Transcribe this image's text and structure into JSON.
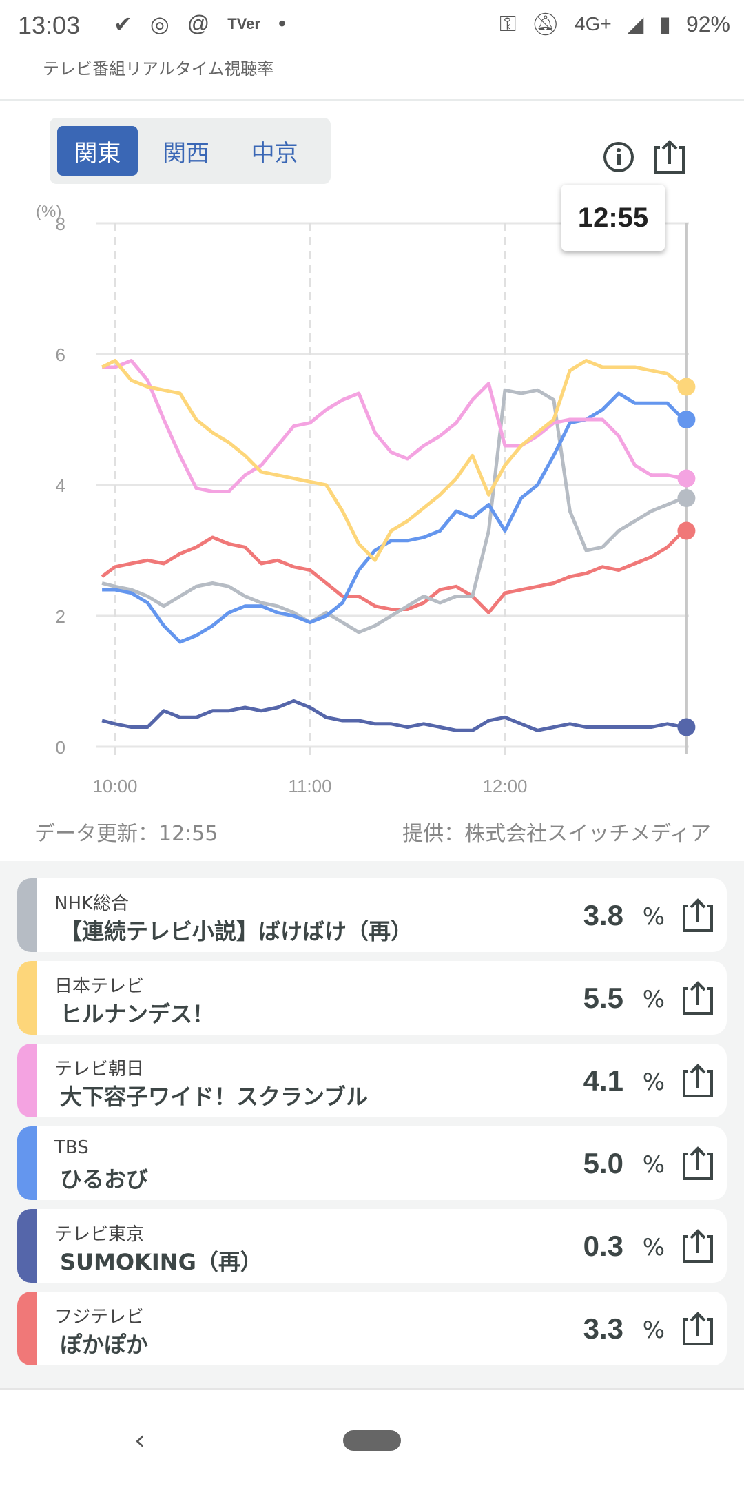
{
  "status_bar": {
    "time": "13:03",
    "network": "4G+",
    "battery": "92%",
    "app_icons": [
      "download-done-icon",
      "instagram-icon",
      "threads-icon",
      "tver-icon",
      "dot-icon"
    ],
    "tver": "TVer"
  },
  "header": {
    "title": "テレビ番組リアルタイム視聴率"
  },
  "region_tabs": [
    {
      "label": "関東",
      "active": true
    },
    {
      "label": "関西",
      "active": false
    },
    {
      "label": "中京",
      "active": false
    }
  ],
  "tooltip": {
    "time": "12:55"
  },
  "footer": {
    "updated": "データ更新：12:55",
    "provider": "提供：株式会社スイッチメディア"
  },
  "chart_data": {
    "type": "line",
    "ylabel": "(%)",
    "ylim": [
      0,
      8
    ],
    "yticks": [
      "0",
      "2",
      "4",
      "6",
      "8"
    ],
    "xlim_minutes_from_10": [
      -4,
      175
    ],
    "xticks": [
      {
        "label": "10:00",
        "min": 0
      },
      {
        "label": "11:00",
        "min": 60
      },
      {
        "label": "12:00",
        "min": 120
      }
    ],
    "cursor_minute": 175,
    "x_minutes": [
      -4,
      0,
      5,
      10,
      15,
      20,
      25,
      30,
      35,
      40,
      45,
      50,
      55,
      60,
      65,
      70,
      75,
      80,
      85,
      90,
      95,
      100,
      105,
      110,
      115,
      120,
      125,
      130,
      135,
      140,
      145,
      150,
      155,
      160,
      165,
      170,
      175
    ],
    "series": [
      {
        "name": "テレビ東京",
        "color": "#5566aa",
        "values": [
          0.4,
          0.35,
          0.3,
          0.3,
          0.55,
          0.45,
          0.45,
          0.55,
          0.55,
          0.6,
          0.55,
          0.6,
          0.7,
          0.6,
          0.45,
          0.4,
          0.4,
          0.35,
          0.35,
          0.3,
          0.35,
          0.3,
          0.25,
          0.25,
          0.4,
          0.45,
          0.35,
          0.25,
          0.3,
          0.35,
          0.3,
          0.3,
          0.3,
          0.3,
          0.3,
          0.35,
          0.3
        ]
      },
      {
        "name": "フジテレビ",
        "color": "#f07878",
        "values": [
          2.6,
          2.75,
          2.8,
          2.85,
          2.8,
          2.95,
          3.05,
          3.2,
          3.1,
          3.05,
          2.8,
          2.85,
          2.75,
          2.7,
          2.5,
          2.3,
          2.3,
          2.15,
          2.1,
          2.1,
          2.2,
          2.4,
          2.45,
          2.3,
          2.05,
          2.35,
          2.4,
          2.45,
          2.5,
          2.6,
          2.65,
          2.75,
          2.7,
          2.8,
          2.9,
          3.05,
          3.3
        ]
      },
      {
        "name": "NHK総合",
        "color": "#b6bcc4",
        "values": [
          2.5,
          2.45,
          2.4,
          2.3,
          2.15,
          2.3,
          2.45,
          2.5,
          2.45,
          2.3,
          2.2,
          2.15,
          2.05,
          1.9,
          2.05,
          1.9,
          1.75,
          1.85,
          2.0,
          2.15,
          2.3,
          2.2,
          2.3,
          2.3,
          3.3,
          5.45,
          5.4,
          5.45,
          5.3,
          3.6,
          3.0,
          3.05,
          3.3,
          3.45,
          3.6,
          3.7,
          3.8
        ]
      },
      {
        "name": "TBS",
        "color": "#6496ee",
        "values": [
          2.4,
          2.4,
          2.35,
          2.2,
          1.85,
          1.6,
          1.7,
          1.85,
          2.05,
          2.15,
          2.15,
          2.05,
          2.0,
          1.9,
          2.0,
          2.2,
          2.7,
          3.0,
          3.15,
          3.15,
          3.2,
          3.3,
          3.6,
          3.5,
          3.7,
          3.3,
          3.8,
          4.0,
          4.45,
          4.95,
          5.0,
          5.15,
          5.4,
          5.25,
          5.25,
          5.25,
          5.0
        ]
      },
      {
        "name": "テレビ朝日",
        "color": "#f4a3e1",
        "values": [
          5.8,
          5.8,
          5.9,
          5.6,
          5.0,
          4.45,
          3.95,
          3.9,
          3.9,
          4.15,
          4.3,
          4.6,
          4.9,
          4.95,
          5.15,
          5.3,
          5.4,
          4.8,
          4.5,
          4.4,
          4.6,
          4.75,
          4.95,
          5.3,
          5.55,
          4.6,
          4.6,
          4.75,
          4.95,
          5.0,
          5.0,
          5.0,
          4.75,
          4.3,
          4.15,
          4.15,
          4.1
        ]
      },
      {
        "name": "日本テレビ",
        "color": "#fdd67a",
        "values": [
          5.8,
          5.9,
          5.6,
          5.5,
          5.45,
          5.4,
          5.0,
          4.8,
          4.65,
          4.45,
          4.2,
          4.15,
          4.1,
          4.05,
          4.0,
          3.6,
          3.1,
          2.85,
          3.3,
          3.45,
          3.65,
          3.85,
          4.1,
          4.45,
          3.85,
          4.3,
          4.6,
          4.8,
          5.0,
          5.75,
          5.9,
          5.8,
          5.8,
          5.8,
          5.75,
          5.7,
          5.5
        ]
      }
    ]
  },
  "programs": [
    {
      "station": "NHK総合",
      "title": "【連続テレビ小説】ばけばけ（再）",
      "rating": "3.8",
      "unit": "%",
      "color": "#b6bcc4"
    },
    {
      "station": "日本テレビ",
      "title": "ヒルナンデス！",
      "rating": "5.5",
      "unit": "%",
      "color": "#fdd67a"
    },
    {
      "station": "テレビ朝日",
      "title": "大下容子ワイド！スクランブル",
      "rating": "4.1",
      "unit": "%",
      "color": "#f4a3e1"
    },
    {
      "station": "TBS",
      "title": "ひるおび",
      "rating": "5.0",
      "unit": "%",
      "color": "#6496ee"
    },
    {
      "station": "テレビ東京",
      "title": "SUMOKING（再）",
      "rating": "0.3",
      "unit": "%",
      "color": "#5566aa"
    },
    {
      "station": "フジテレビ",
      "title": "ぽかぽか",
      "rating": "3.3",
      "unit": "%",
      "color": "#f07878"
    }
  ]
}
